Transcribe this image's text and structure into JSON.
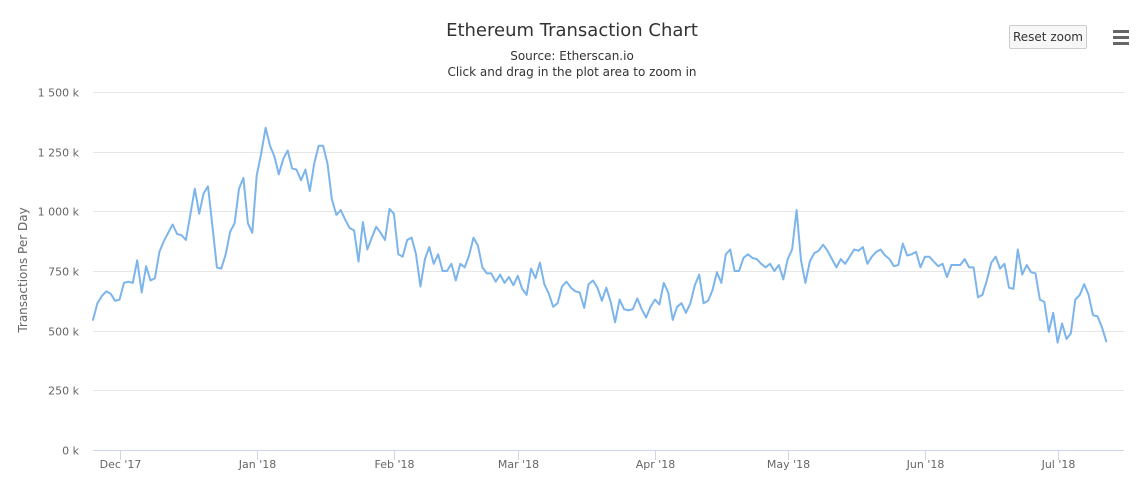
{
  "header": {
    "title": "Ethereum Transaction Chart",
    "subtitle_source": "Source: Etherscan.io",
    "subtitle_hint": "Click and drag in the plot area to zoom in",
    "reset_zoom_label": "Reset zoom",
    "menu_icon": "hamburger-menu-icon"
  },
  "colors": {
    "line": "#7cb5ec",
    "grid": "#e6e6e6",
    "axis": "#ccd6eb"
  },
  "chart_data": {
    "type": "line",
    "title": "Ethereum Transaction Chart",
    "subtitle": "Source: Etherscan.io",
    "xlabel": "",
    "ylabel": "Transactions Per Day",
    "ylim": [
      0,
      1500000
    ],
    "yticks": [
      0,
      250000,
      500000,
      750000,
      1000000,
      1250000,
      1500000
    ],
    "ytick_labels": [
      "0 k",
      "250 k",
      "500 k",
      "750 k",
      "1 000 k",
      "1 250 k",
      "1 500 k"
    ],
    "xlim": [
      "2017-11-25",
      "2018-07-16"
    ],
    "xticks": [
      "2017-12-01",
      "2018-01-01",
      "2018-02-01",
      "2018-03-01",
      "2018-04-01",
      "2018-05-01",
      "2018-06-01",
      "2018-07-01"
    ],
    "xtick_labels": [
      "Dec '17",
      "Jan '18",
      "Feb '18",
      "Mar '18",
      "Apr '18",
      "May '18",
      "Jun '18",
      "Jul '18"
    ],
    "grid": true,
    "legend": "none",
    "series": [
      {
        "start_date": "2017-11-25",
        "interval_days": 1,
        "values": [
          545000,
          615000,
          645000,
          665000,
          655000,
          625000,
          630000,
          700000,
          705000,
          700000,
          795000,
          660000,
          770000,
          710000,
          720000,
          830000,
          875000,
          910000,
          945000,
          905000,
          900000,
          880000,
          985000,
          1095000,
          990000,
          1075000,
          1105000,
          935000,
          765000,
          760000,
          820000,
          915000,
          950000,
          1095000,
          1140000,
          950000,
          910000,
          1150000,
          1240000,
          1350000,
          1275000,
          1230000,
          1155000,
          1220000,
          1255000,
          1180000,
          1175000,
          1130000,
          1175000,
          1085000,
          1200000,
          1275000,
          1275000,
          1200000,
          1050000,
          985000,
          1005000,
          965000,
          930000,
          920000,
          790000,
          955000,
          840000,
          890000,
          935000,
          910000,
          880000,
          1010000,
          990000,
          820000,
          810000,
          880000,
          890000,
          820000,
          685000,
          800000,
          850000,
          780000,
          820000,
          750000,
          750000,
          780000,
          710000,
          780000,
          765000,
          815000,
          890000,
          855000,
          765000,
          740000,
          740000,
          705000,
          735000,
          700000,
          725000,
          690000,
          730000,
          675000,
          650000,
          760000,
          720000,
          785000,
          695000,
          655000,
          600000,
          615000,
          685000,
          705000,
          680000,
          665000,
          660000,
          595000,
          695000,
          710000,
          680000,
          625000,
          680000,
          620000,
          535000,
          630000,
          590000,
          585000,
          590000,
          635000,
          590000,
          555000,
          600000,
          630000,
          610000,
          700000,
          660000,
          545000,
          600000,
          615000,
          575000,
          615000,
          690000,
          735000,
          615000,
          625000,
          670000,
          745000,
          700000,
          820000,
          840000,
          750000,
          750000,
          805000,
          820000,
          805000,
          800000,
          780000,
          765000,
          780000,
          750000,
          775000,
          715000,
          800000,
          840000,
          1005000,
          795000,
          700000,
          790000,
          825000,
          835000,
          860000,
          835000,
          800000,
          765000,
          800000,
          780000,
          810000,
          840000,
          835000,
          850000,
          780000,
          810000,
          830000,
          840000,
          815000,
          800000,
          770000,
          775000,
          865000,
          815000,
          820000,
          830000,
          765000,
          810000,
          810000,
          790000,
          770000,
          780000,
          725000,
          775000,
          775000,
          775000,
          800000,
          765000,
          765000,
          640000,
          650000,
          710000,
          785000,
          810000,
          760000,
          780000,
          680000,
          675000,
          840000,
          735000,
          775000,
          745000,
          740000,
          630000,
          620000,
          495000,
          575000,
          450000,
          530000,
          465000,
          490000,
          630000,
          650000,
          695000,
          650000,
          565000,
          560000,
          515000,
          455000
        ]
      }
    ]
  }
}
